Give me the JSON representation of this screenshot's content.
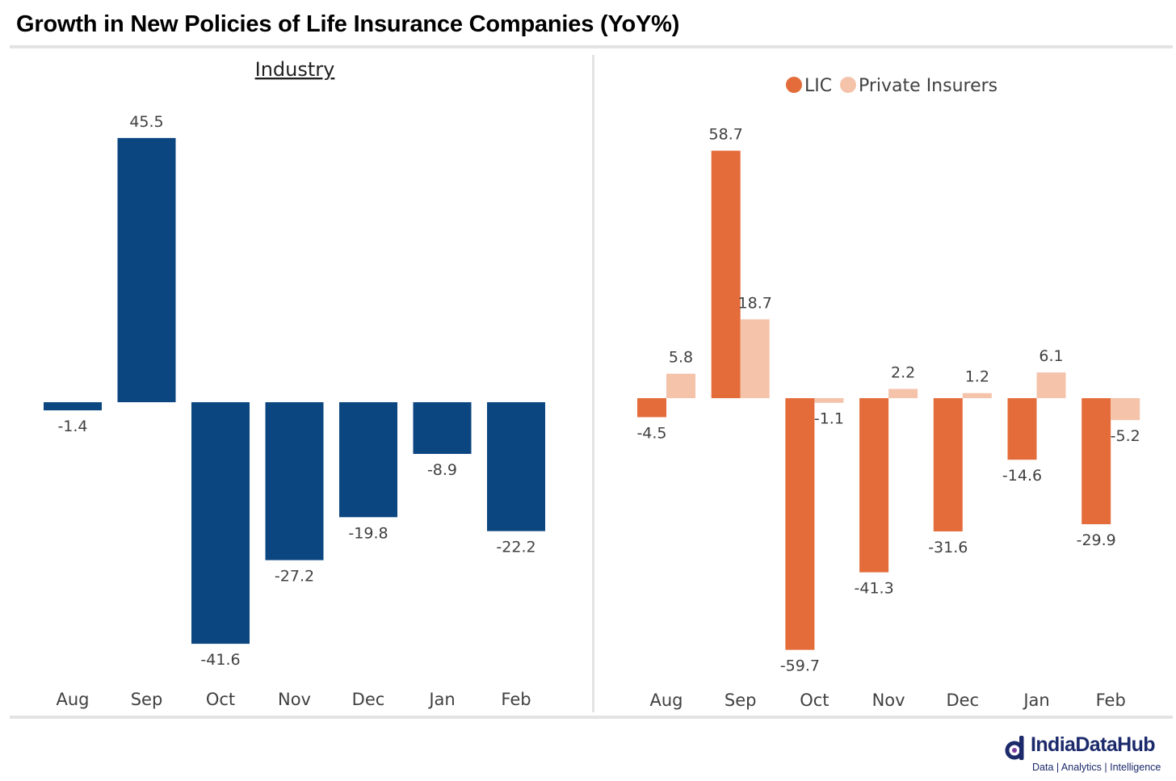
{
  "title": "Growth in New Policies of Life Insurance Companies (YoY%)",
  "colors": {
    "industry": "#0b4680",
    "lic": "#e46c3a",
    "private": "#f4c3aa",
    "label_text": "#404040",
    "divider": "#e3e3e3"
  },
  "logo": {
    "name": "IndiaDataHub",
    "tagline": "Data | Analytics | Intelligence",
    "mark_icon": "q-logo-icon"
  },
  "chart_data": [
    {
      "type": "bar",
      "title": "Industry",
      "categories": [
        "Aug",
        "Sep",
        "Oct",
        "Nov",
        "Dec",
        "Jan",
        "Feb"
      ],
      "series": [
        {
          "values": [
            -1.4,
            45.5,
            -41.6,
            -27.2,
            -19.8,
            -8.9,
            -22.2
          ]
        }
      ],
      "data_labels": [
        "-1.4",
        "45.5",
        "-41.6",
        "-27.2",
        "-19.8",
        "-8.9",
        "-22.2"
      ],
      "ylim": [
        -41.6,
        45.5
      ],
      "grid": false,
      "legend": "none"
    },
    {
      "type": "bar",
      "title": "",
      "categories": [
        "Aug",
        "Sep",
        "Oct",
        "Nov",
        "Dec",
        "Jan",
        "Feb"
      ],
      "series": [
        {
          "name": "LIC",
          "values": [
            -4.5,
            58.7,
            -59.7,
            -41.3,
            -31.6,
            -14.6,
            -29.9
          ],
          "data_labels": [
            "-4.5",
            "58.7",
            "-59.7",
            "-41.3",
            "-31.6",
            "-14.6",
            "-29.9"
          ]
        },
        {
          "name": "Private Insurers",
          "values": [
            5.8,
            18.7,
            -1.1,
            2.2,
            1.2,
            6.1,
            -5.2
          ],
          "data_labels": [
            "5.8",
            "18.7",
            "-1.1",
            "2.2",
            "1.2",
            "6.1",
            "-5.2"
          ]
        }
      ],
      "ylim": [
        -59.7,
        58.7
      ],
      "grid": false,
      "legend": "top-center"
    }
  ]
}
